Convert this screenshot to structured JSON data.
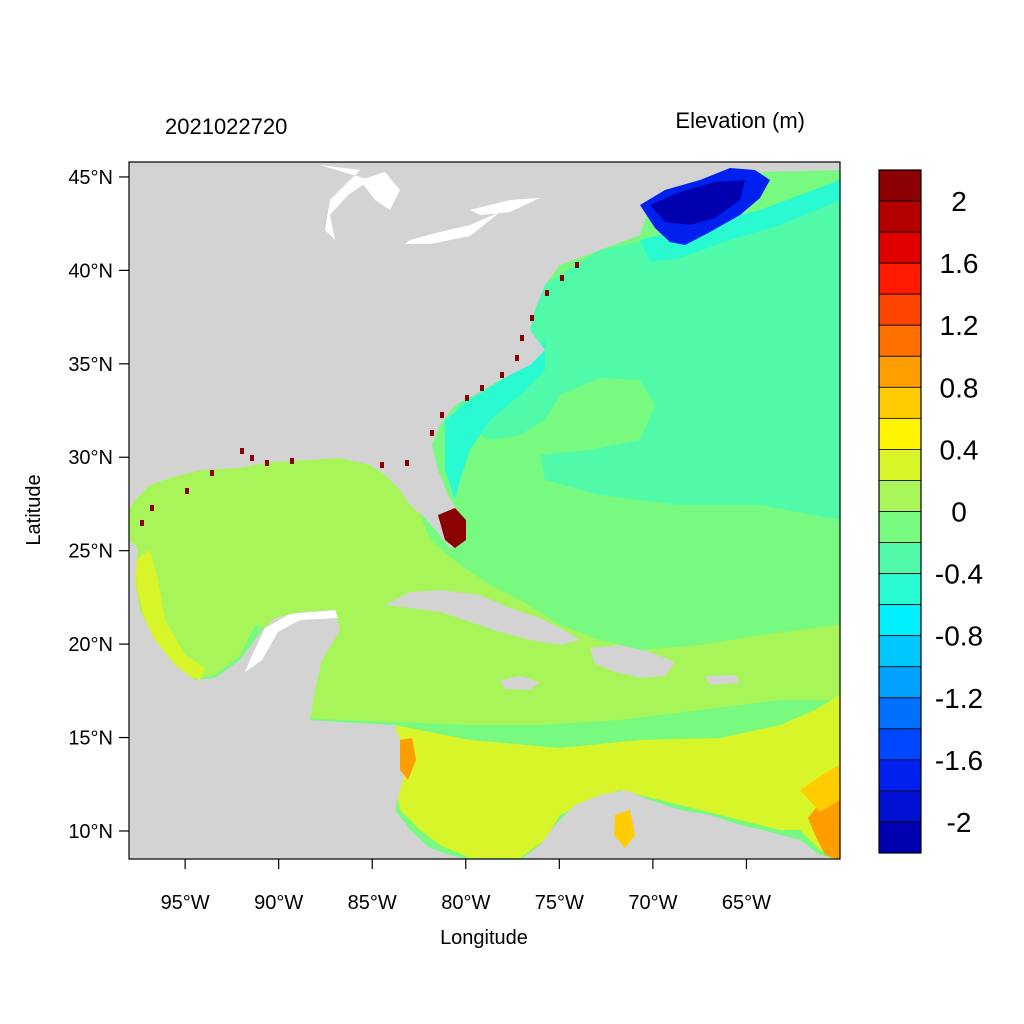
{
  "header": {
    "timestamp": "2021022720",
    "variable": "Elevation (m)"
  },
  "axes": {
    "xlabel": "Longitude",
    "ylabel": "Latitude",
    "xticks": [
      "95°W",
      "90°W",
      "85°W",
      "80°W",
      "75°W",
      "70°W",
      "65°W"
    ],
    "xtick_values": [
      -95,
      -90,
      -85,
      -80,
      -75,
      -70,
      -65
    ],
    "yticks": [
      "45°N",
      "40°N",
      "35°N",
      "30°N",
      "25°N",
      "20°N",
      "15°N",
      "10°N"
    ],
    "ytick_values": [
      45,
      40,
      35,
      30,
      25,
      20,
      15,
      10
    ],
    "lon_range": [
      -98,
      -60
    ],
    "lat_range": [
      8.5,
      45.8
    ]
  },
  "colorbar": {
    "labels": [
      "2",
      "1.6",
      "1.2",
      "0.8",
      "0.4",
      "0",
      "-0.4",
      "-0.8",
      "-1.2",
      "-1.6",
      "-2"
    ],
    "colors": [
      "#8b0000",
      "#b50000",
      "#e10000",
      "#ff1a00",
      "#ff4400",
      "#ff7000",
      "#ff9e00",
      "#ffcc00",
      "#fff500",
      "#d8f52a",
      "#a8f55a",
      "#78fa80",
      "#50faa8",
      "#2afad2",
      "#00f0ff",
      "#00c8ff",
      "#00a0ff",
      "#0070ff",
      "#0048ff",
      "#0020f0",
      "#0010d0",
      "#0000b0"
    ]
  },
  "map_colors": {
    "land": "#d3d3d3",
    "lakes": "#ffffff",
    "gulf": "#a8f55a",
    "atlantic": "#78fa80",
    "shelf": "#50faa8",
    "nearshore": "#2afad2",
    "coastal_cyan": "#00f0ff",
    "caribbean_south": "#d8f52a",
    "orange": "#ff9e00",
    "gulf_of_maine": "#0020f0",
    "deep_blue": "#0000b0",
    "flood_red": "#8b0000"
  }
}
